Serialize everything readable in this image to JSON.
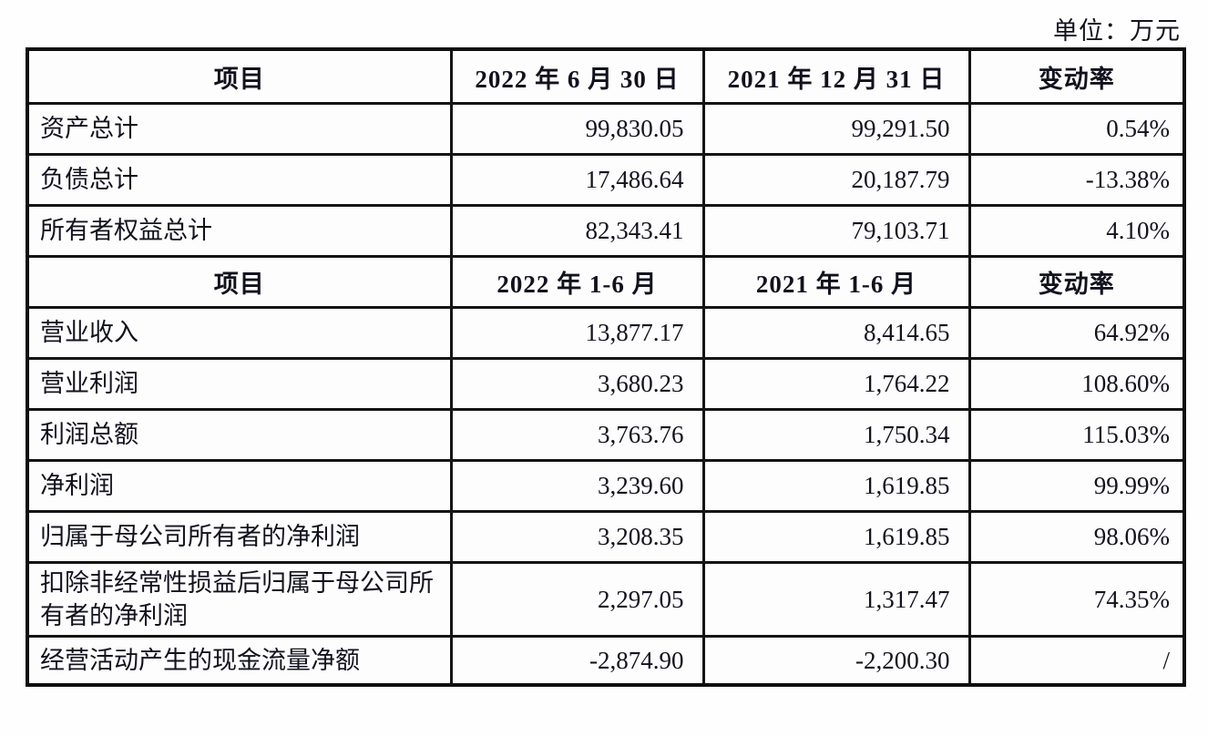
{
  "unit_label": "单位：万元",
  "colors": {
    "border": "#141414",
    "text": "#12121e",
    "cell_background": "#fdfdfd"
  },
  "table": {
    "sections": [
      {
        "headers": [
          "项目",
          "2022 年 6 月 30 日",
          "2021 年 12 月 31 日",
          "变动率"
        ],
        "rows": [
          {
            "item": "资产总计",
            "v1": "99,830.05",
            "v2": "99,291.50",
            "change": "0.54%"
          },
          {
            "item": "负债总计",
            "v1": "17,486.64",
            "v2": "20,187.79",
            "change": "-13.38%"
          },
          {
            "item": "所有者权益总计",
            "v1": "82,343.41",
            "v2": "79,103.71",
            "change": "4.10%"
          }
        ]
      },
      {
        "headers": [
          "项目",
          "2022 年 1-6 月",
          "2021 年 1-6 月",
          "变动率"
        ],
        "rows": [
          {
            "item": "营业收入",
            "v1": "13,877.17",
            "v2": "8,414.65",
            "change": "64.92%"
          },
          {
            "item": "营业利润",
            "v1": "3,680.23",
            "v2": "1,764.22",
            "change": "108.60%"
          },
          {
            "item": "利润总额",
            "v1": "3,763.76",
            "v2": "1,750.34",
            "change": "115.03%"
          },
          {
            "item": "净利润",
            "v1": "3,239.60",
            "v2": "1,619.85",
            "change": "99.99%"
          },
          {
            "item": "归属于母公司所有者的净利润",
            "v1": "3,208.35",
            "v2": "1,619.85",
            "change": "98.06%"
          },
          {
            "item": "扣除非经常性损益后归属于母公司所有者的净利润",
            "v1": "2,297.05",
            "v2": "1,317.47",
            "change": "74.35%",
            "tall": true
          },
          {
            "item": "经营活动产生的现金流量净额",
            "v1": "-2,874.90",
            "v2": "-2,200.30",
            "change": "/",
            "last": true
          }
        ]
      }
    ]
  }
}
